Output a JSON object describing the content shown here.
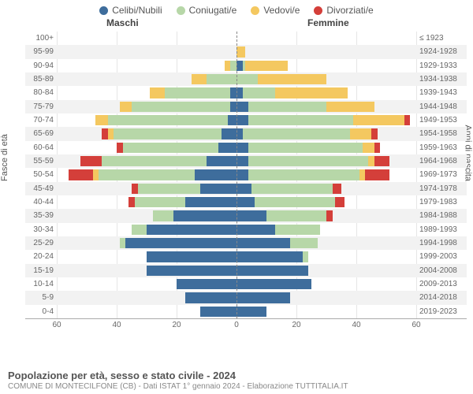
{
  "legend": {
    "items": [
      {
        "label": "Celibi/Nubili",
        "color": "#3e6d9c"
      },
      {
        "label": "Coniugati/e",
        "color": "#b7d7a8"
      },
      {
        "label": "Vedovi/e",
        "color": "#f4c860"
      },
      {
        "label": "Divorziati/e",
        "color": "#d43f3a"
      }
    ]
  },
  "gender": {
    "male": "Maschi",
    "female": "Femmine"
  },
  "axes": {
    "left_title": "Fasce di età",
    "right_title": "Anni di nascita",
    "xmax": 60,
    "xticks": [
      60,
      40,
      20,
      0,
      20,
      40,
      60
    ]
  },
  "colors": {
    "celibi": "#3e6d9c",
    "coniugati": "#b7d7a8",
    "vedovi": "#f4c860",
    "divorziati": "#d43f3a",
    "grid": "#e6e6e6",
    "row_alt": "#f2f2f2",
    "background": "#ffffff"
  },
  "footer": {
    "title": "Popolazione per età, sesso e stato civile - 2024",
    "subtitle": "COMUNE DI MONTECILFONE (CB) - Dati ISTAT 1° gennaio 2024 - Elaborazione TUTTITALIA.IT"
  },
  "rows": [
    {
      "age": "100+",
      "birth": "≤ 1923",
      "m": {
        "cel": 0,
        "con": 0,
        "ved": 0,
        "div": 0
      },
      "f": {
        "cel": 0,
        "con": 0,
        "ved": 0,
        "div": 0
      }
    },
    {
      "age": "95-99",
      "birth": "1924-1928",
      "m": {
        "cel": 0,
        "con": 0,
        "ved": 0,
        "div": 0
      },
      "f": {
        "cel": 0,
        "con": 0,
        "ved": 3,
        "div": 0
      }
    },
    {
      "age": "90-94",
      "birth": "1929-1933",
      "m": {
        "cel": 0,
        "con": 2,
        "ved": 2,
        "div": 0
      },
      "f": {
        "cel": 2,
        "con": 1,
        "ved": 14,
        "div": 0
      }
    },
    {
      "age": "85-89",
      "birth": "1934-1938",
      "m": {
        "cel": 0,
        "con": 10,
        "ved": 5,
        "div": 0
      },
      "f": {
        "cel": 0,
        "con": 7,
        "ved": 23,
        "div": 0
      }
    },
    {
      "age": "80-84",
      "birth": "1939-1943",
      "m": {
        "cel": 2,
        "con": 22,
        "ved": 5,
        "div": 0
      },
      "f": {
        "cel": 2,
        "con": 11,
        "ved": 24,
        "div": 0
      }
    },
    {
      "age": "75-79",
      "birth": "1944-1948",
      "m": {
        "cel": 2,
        "con": 33,
        "ved": 4,
        "div": 0
      },
      "f": {
        "cel": 4,
        "con": 26,
        "ved": 16,
        "div": 0
      }
    },
    {
      "age": "70-74",
      "birth": "1949-1953",
      "m": {
        "cel": 3,
        "con": 40,
        "ved": 4,
        "div": 0
      },
      "f": {
        "cel": 4,
        "con": 35,
        "ved": 17,
        "div": 2
      }
    },
    {
      "age": "65-69",
      "birth": "1954-1958",
      "m": {
        "cel": 5,
        "con": 36,
        "ved": 2,
        "div": 2
      },
      "f": {
        "cel": 2,
        "con": 36,
        "ved": 7,
        "div": 2
      }
    },
    {
      "age": "60-64",
      "birth": "1959-1963",
      "m": {
        "cel": 6,
        "con": 32,
        "ved": 0,
        "div": 2
      },
      "f": {
        "cel": 4,
        "con": 38,
        "ved": 4,
        "div": 2
      }
    },
    {
      "age": "55-59",
      "birth": "1964-1968",
      "m": {
        "cel": 10,
        "con": 35,
        "ved": 0,
        "div": 7
      },
      "f": {
        "cel": 4,
        "con": 40,
        "ved": 2,
        "div": 5
      }
    },
    {
      "age": "50-54",
      "birth": "1969-1973",
      "m": {
        "cel": 14,
        "con": 32,
        "ved": 2,
        "div": 8
      },
      "f": {
        "cel": 4,
        "con": 37,
        "ved": 2,
        "div": 8
      }
    },
    {
      "age": "45-49",
      "birth": "1974-1978",
      "m": {
        "cel": 12,
        "con": 21,
        "ved": 0,
        "div": 2
      },
      "f": {
        "cel": 5,
        "con": 27,
        "ved": 0,
        "div": 3
      }
    },
    {
      "age": "40-44",
      "birth": "1979-1983",
      "m": {
        "cel": 17,
        "con": 17,
        "ved": 0,
        "div": 2
      },
      "f": {
        "cel": 6,
        "con": 27,
        "ved": 0,
        "div": 3
      }
    },
    {
      "age": "35-39",
      "birth": "1984-1988",
      "m": {
        "cel": 21,
        "con": 7,
        "ved": 0,
        "div": 0
      },
      "f": {
        "cel": 10,
        "con": 20,
        "ved": 0,
        "div": 2
      }
    },
    {
      "age": "30-34",
      "birth": "1989-1993",
      "m": {
        "cel": 30,
        "con": 5,
        "ved": 0,
        "div": 0
      },
      "f": {
        "cel": 13,
        "con": 15,
        "ved": 0,
        "div": 0
      }
    },
    {
      "age": "25-29",
      "birth": "1994-1998",
      "m": {
        "cel": 37,
        "con": 2,
        "ved": 0,
        "div": 0
      },
      "f": {
        "cel": 18,
        "con": 9,
        "ved": 0,
        "div": 0
      }
    },
    {
      "age": "20-24",
      "birth": "1999-2003",
      "m": {
        "cel": 30,
        "con": 0,
        "ved": 0,
        "div": 0
      },
      "f": {
        "cel": 22,
        "con": 2,
        "ved": 0,
        "div": 0
      }
    },
    {
      "age": "15-19",
      "birth": "2004-2008",
      "m": {
        "cel": 30,
        "con": 0,
        "ved": 0,
        "div": 0
      },
      "f": {
        "cel": 24,
        "con": 0,
        "ved": 0,
        "div": 0
      }
    },
    {
      "age": "10-14",
      "birth": "2009-2013",
      "m": {
        "cel": 20,
        "con": 0,
        "ved": 0,
        "div": 0
      },
      "f": {
        "cel": 25,
        "con": 0,
        "ved": 0,
        "div": 0
      }
    },
    {
      "age": "5-9",
      "birth": "2014-2018",
      "m": {
        "cel": 17,
        "con": 0,
        "ved": 0,
        "div": 0
      },
      "f": {
        "cel": 18,
        "con": 0,
        "ved": 0,
        "div": 0
      }
    },
    {
      "age": "0-4",
      "birth": "2019-2023",
      "m": {
        "cel": 12,
        "con": 0,
        "ved": 0,
        "div": 0
      },
      "f": {
        "cel": 10,
        "con": 0,
        "ved": 0,
        "div": 0
      }
    }
  ]
}
